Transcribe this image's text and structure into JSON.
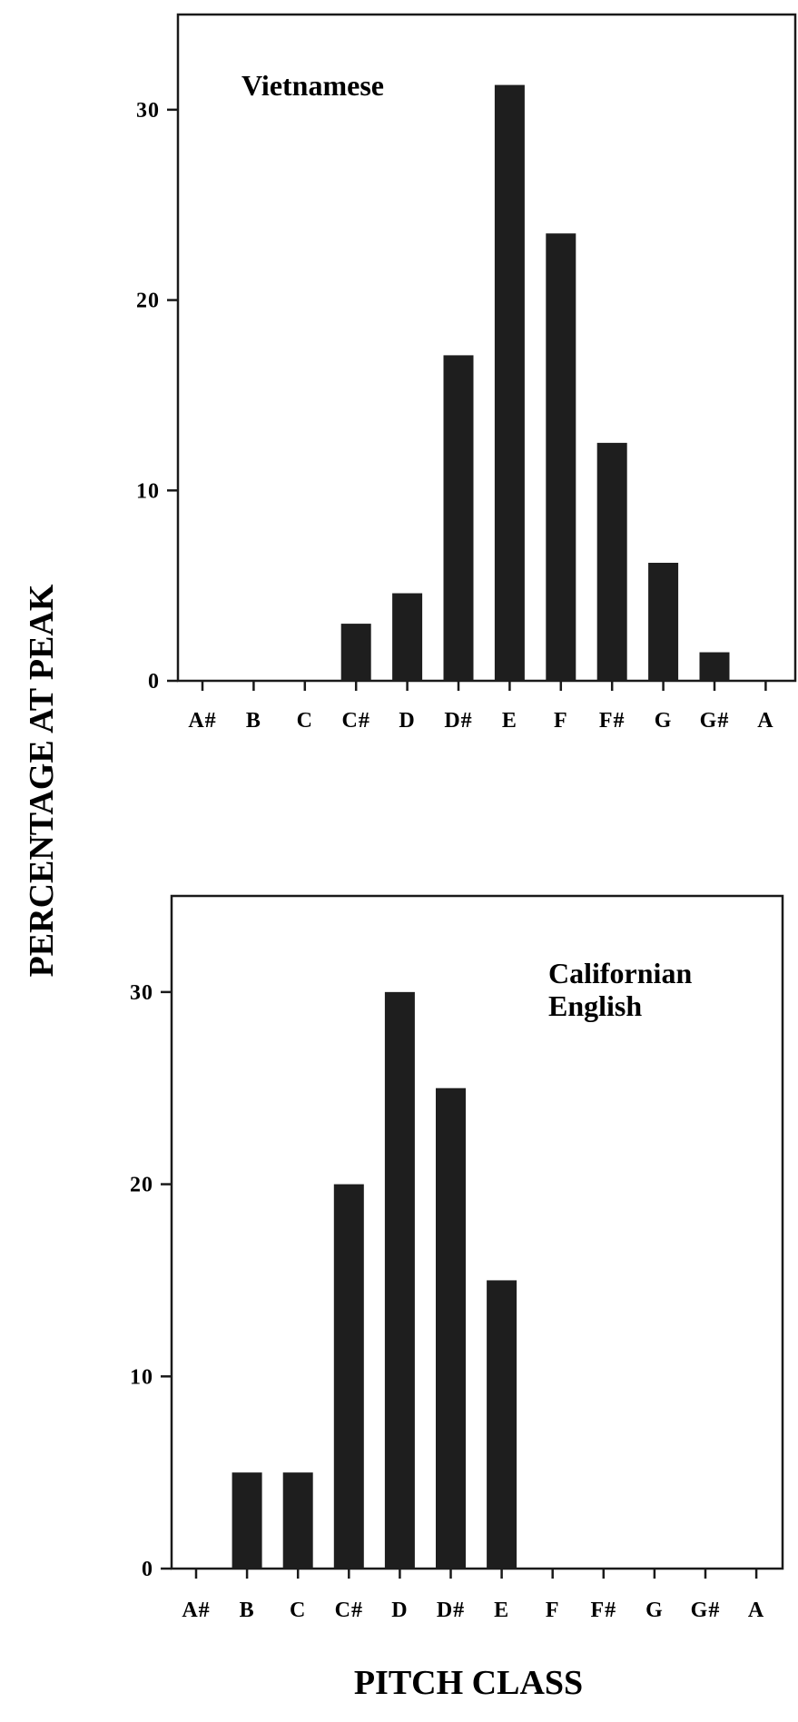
{
  "figure": {
    "ylabel": "PERCENTAGE AT PEAK",
    "xlabel": "PITCH CLASS"
  },
  "chart_data": [
    {
      "type": "bar",
      "title": "Vietnamese",
      "categories": [
        "A#",
        "B",
        "C",
        "C#",
        "D",
        "D#",
        "E",
        "F",
        "F#",
        "G",
        "G#",
        "A"
      ],
      "values": [
        0,
        0,
        0,
        3,
        4.6,
        17.1,
        31.3,
        23.5,
        12.5,
        6.2,
        1.5,
        0
      ],
      "yticks": [
        "0",
        "10",
        "20",
        "30"
      ],
      "ylim": [
        0,
        35
      ],
      "grid": false
    },
    {
      "type": "bar",
      "title_lines": [
        "Californian",
        "English"
      ],
      "categories": [
        "A#",
        "B",
        "C",
        "C#",
        "D",
        "D#",
        "E",
        "F",
        "F#",
        "G",
        "G#",
        "A"
      ],
      "values": [
        0,
        5,
        5,
        20,
        30,
        25,
        15,
        0,
        0,
        0,
        0,
        0
      ],
      "yticks": [
        "0",
        "10",
        "20",
        "30"
      ],
      "ylim": [
        0,
        35
      ],
      "grid": false
    }
  ]
}
